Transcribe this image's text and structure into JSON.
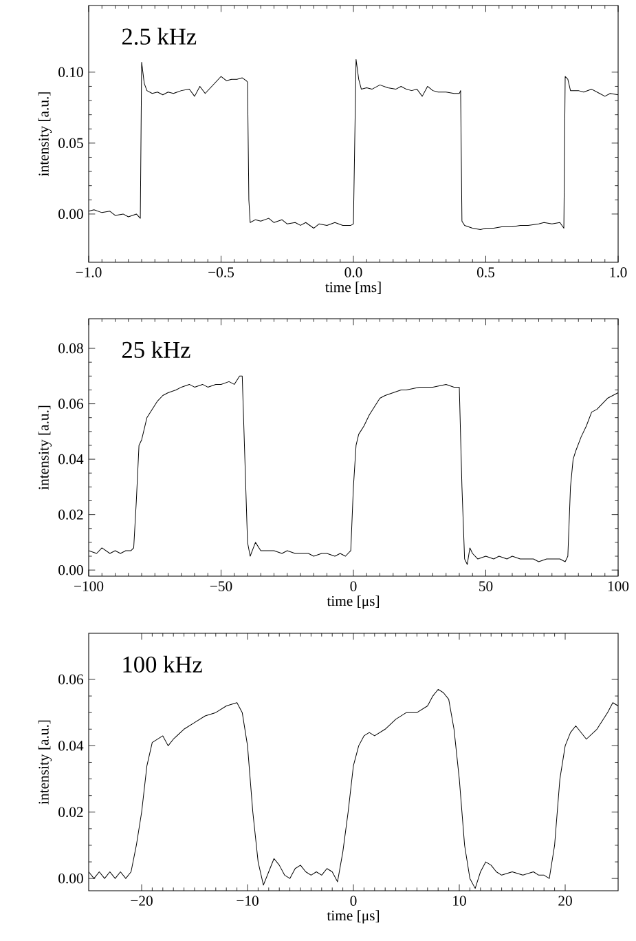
{
  "chart_data": [
    {
      "type": "line",
      "xlabel": "time [ms]",
      "ylabel": "intensity [a.u.]",
      "annotations": [
        "2.5  kHz"
      ],
      "color": "#000000",
      "xlim": [
        -1.0,
        1.0
      ],
      "ylim": [
        -0.034,
        0.147
      ],
      "xticks": [
        {
          "value": -1.0,
          "label": "−1.0"
        },
        {
          "value": -0.5,
          "label": "−0.5"
        },
        {
          "value": 0.0,
          "label": "0.0"
        },
        {
          "value": 0.5,
          "label": "0.5"
        },
        {
          "value": 1.0,
          "label": "1.0"
        }
      ],
      "yticks": [
        {
          "value": 0.0,
          "label": "0.00"
        },
        {
          "value": 0.05,
          "label": "0.05"
        },
        {
          "value": 0.1,
          "label": "0.10"
        }
      ],
      "x": [
        -1.0,
        -0.98,
        -0.95,
        -0.92,
        -0.9,
        -0.87,
        -0.85,
        -0.82,
        -0.805,
        -0.8,
        -0.79,
        -0.78,
        -0.76,
        -0.74,
        -0.72,
        -0.7,
        -0.68,
        -0.65,
        -0.62,
        -0.6,
        -0.58,
        -0.56,
        -0.54,
        -0.52,
        -0.5,
        -0.48,
        -0.46,
        -0.44,
        -0.42,
        -0.405,
        -0.4,
        -0.395,
        -0.39,
        -0.37,
        -0.35,
        -0.32,
        -0.3,
        -0.27,
        -0.25,
        -0.22,
        -0.2,
        -0.18,
        -0.15,
        -0.13,
        -0.1,
        -0.07,
        -0.04,
        -0.01,
        0.0,
        0.01,
        0.02,
        0.03,
        0.05,
        0.07,
        0.1,
        0.13,
        0.16,
        0.18,
        0.2,
        0.22,
        0.24,
        0.26,
        0.28,
        0.3,
        0.32,
        0.35,
        0.38,
        0.4,
        0.405,
        0.41,
        0.42,
        0.45,
        0.48,
        0.5,
        0.53,
        0.56,
        0.6,
        0.63,
        0.66,
        0.7,
        0.72,
        0.75,
        0.78,
        0.795,
        0.8,
        0.81,
        0.82,
        0.85,
        0.87,
        0.9,
        0.93,
        0.95,
        0.97,
        1.0
      ],
      "values": [
        0.002,
        0.003,
        0.001,
        0.002,
        -0.001,
        0.0,
        -0.002,
        0.0,
        -0.003,
        0.107,
        0.092,
        0.087,
        0.085,
        0.086,
        0.084,
        0.086,
        0.085,
        0.087,
        0.088,
        0.083,
        0.09,
        0.085,
        0.089,
        0.093,
        0.097,
        0.094,
        0.095,
        0.095,
        0.096,
        0.094,
        0.093,
        0.01,
        -0.006,
        -0.004,
        -0.005,
        -0.003,
        -0.006,
        -0.004,
        -0.007,
        -0.006,
        -0.008,
        -0.006,
        -0.01,
        -0.007,
        -0.008,
        -0.006,
        -0.008,
        -0.008,
        -0.007,
        0.109,
        0.095,
        0.088,
        0.089,
        0.088,
        0.091,
        0.089,
        0.088,
        0.09,
        0.088,
        0.087,
        0.088,
        0.083,
        0.09,
        0.087,
        0.086,
        0.086,
        0.085,
        0.085,
        0.087,
        -0.005,
        -0.008,
        -0.01,
        -0.011,
        -0.01,
        -0.01,
        -0.009,
        -0.009,
        -0.008,
        -0.008,
        -0.007,
        -0.006,
        -0.007,
        -0.006,
        -0.01,
        0.097,
        0.095,
        0.087,
        0.087,
        0.086,
        0.088,
        0.085,
        0.083,
        0.085,
        0.084
      ]
    },
    {
      "type": "line",
      "xlabel": "time [μs]",
      "ylabel": "intensity [a.u.]",
      "annotations": [
        "25  kHz"
      ],
      "color": "#000000",
      "xlim": [
        -100,
        100
      ],
      "ylim": [
        -0.0022,
        0.0907
      ],
      "xticks": [
        {
          "value": -100,
          "label": "−100"
        },
        {
          "value": -50,
          "label": "−50"
        },
        0,
        50,
        100
      ],
      "yticks": [
        {
          "value": 0.0,
          "label": "0.00"
        },
        {
          "value": 0.02,
          "label": "0.02"
        },
        {
          "value": 0.04,
          "label": "0.04"
        },
        {
          "value": 0.06,
          "label": "0.06"
        },
        {
          "value": 0.08,
          "label": "0.08"
        }
      ],
      "x": [
        -100,
        -97,
        -95,
        -92,
        -90,
        -88,
        -86,
        -84,
        -83,
        -82,
        -81,
        -80,
        -79,
        -78,
        -76,
        -74,
        -72,
        -70,
        -67,
        -65,
        -62,
        -60,
        -57,
        -55,
        -52,
        -50,
        -47,
        -45,
        -43,
        -42,
        -41,
        -40,
        -39,
        -37,
        -35,
        -33,
        -30,
        -27,
        -25,
        -22,
        -20,
        -17,
        -15,
        -12,
        -10,
        -7,
        -5,
        -3,
        -1,
        0,
        1,
        2,
        4,
        6,
        8,
        10,
        12,
        15,
        18,
        20,
        25,
        30,
        35,
        38,
        40,
        41,
        42,
        43,
        44,
        45,
        47,
        50,
        53,
        55,
        58,
        60,
        63,
        65,
        68,
        70,
        73,
        75,
        78,
        80,
        81,
        82,
        83,
        84,
        86,
        88,
        90,
        92,
        94,
        96,
        98,
        100
      ],
      "values": [
        0.007,
        0.006,
        0.008,
        0.006,
        0.007,
        0.006,
        0.007,
        0.007,
        0.008,
        0.025,
        0.045,
        0.047,
        0.051,
        0.055,
        0.058,
        0.061,
        0.063,
        0.064,
        0.065,
        0.066,
        0.067,
        0.066,
        0.067,
        0.066,
        0.067,
        0.067,
        0.068,
        0.067,
        0.07,
        0.07,
        0.04,
        0.01,
        0.005,
        0.01,
        0.007,
        0.007,
        0.007,
        0.006,
        0.007,
        0.006,
        0.006,
        0.006,
        0.005,
        0.006,
        0.006,
        0.005,
        0.006,
        0.005,
        0.007,
        0.03,
        0.045,
        0.049,
        0.052,
        0.056,
        0.059,
        0.062,
        0.063,
        0.064,
        0.065,
        0.065,
        0.066,
        0.066,
        0.067,
        0.066,
        0.066,
        0.03,
        0.004,
        0.002,
        0.008,
        0.006,
        0.004,
        0.005,
        0.004,
        0.005,
        0.004,
        0.005,
        0.004,
        0.004,
        0.004,
        0.003,
        0.004,
        0.004,
        0.004,
        0.003,
        0.005,
        0.03,
        0.04,
        0.043,
        0.048,
        0.052,
        0.057,
        0.058,
        0.06,
        0.062,
        0.063,
        0.064
      ]
    },
    {
      "type": "line",
      "xlabel": "time [μs]",
      "ylabel": "intensity [a.u.]",
      "annotations": [
        "100  kHz"
      ],
      "color": "#000000",
      "xlim": [
        -25,
        25
      ],
      "ylim": [
        -0.0037,
        0.0739
      ],
      "xticks": [
        {
          "value": -20,
          "label": "−20"
        },
        {
          "value": -10,
          "label": "−10"
        },
        0,
        10,
        20
      ],
      "yticks": [
        {
          "value": 0.0,
          "label": "0.00"
        },
        {
          "value": 0.02,
          "label": "0.02"
        },
        {
          "value": 0.04,
          "label": "0.04"
        },
        {
          "value": 0.06,
          "label": "0.06"
        }
      ],
      "x": [
        -25,
        -24.5,
        -24,
        -23.5,
        -23,
        -22.5,
        -22,
        -21.5,
        -21,
        -20.5,
        -20,
        -19.5,
        -19,
        -18.5,
        -18,
        -17.5,
        -17,
        -16,
        -15,
        -14,
        -13,
        -12,
        -11,
        -10.5,
        -10,
        -9.5,
        -9,
        -8.5,
        -8,
        -7.5,
        -7,
        -6.5,
        -6,
        -5.5,
        -5,
        -4.5,
        -4,
        -3.5,
        -3,
        -2.5,
        -2,
        -1.5,
        -1,
        -0.5,
        0,
        0.5,
        1,
        1.5,
        2,
        3,
        4,
        5,
        6,
        7,
        7.5,
        8,
        8.5,
        9,
        9.5,
        10,
        10.5,
        11,
        11.5,
        12,
        12.5,
        13,
        13.5,
        14,
        15,
        16,
        17,
        17.5,
        18,
        18.5,
        19,
        19.5,
        20,
        20.5,
        21,
        21.5,
        22,
        23,
        24,
        24.5,
        25
      ],
      "values": [
        0.002,
        0.0,
        0.002,
        0.0,
        0.002,
        0.0,
        0.002,
        0.0,
        0.002,
        0.01,
        0.02,
        0.034,
        0.041,
        0.042,
        0.043,
        0.04,
        0.042,
        0.045,
        0.047,
        0.049,
        0.05,
        0.052,
        0.053,
        0.05,
        0.04,
        0.02,
        0.005,
        -0.002,
        0.002,
        0.006,
        0.004,
        0.001,
        0.0,
        0.003,
        0.004,
        0.002,
        0.001,
        0.002,
        0.001,
        0.003,
        0.002,
        -0.001,
        0.008,
        0.02,
        0.034,
        0.04,
        0.043,
        0.044,
        0.043,
        0.045,
        0.048,
        0.05,
        0.05,
        0.052,
        0.055,
        0.057,
        0.056,
        0.054,
        0.045,
        0.03,
        0.01,
        0.0,
        -0.003,
        0.002,
        0.005,
        0.004,
        0.002,
        0.001,
        0.002,
        0.001,
        0.002,
        0.001,
        0.001,
        0.0,
        0.01,
        0.03,
        0.04,
        0.044,
        0.046,
        0.044,
        0.042,
        0.045,
        0.05,
        0.053,
        0.052
      ]
    }
  ]
}
